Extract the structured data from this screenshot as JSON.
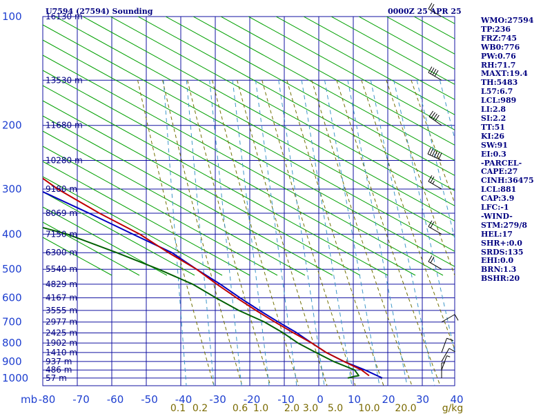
{
  "header": {
    "station": "U7594 (27594) Sounding",
    "time": "0000Z 25 APR 25"
  },
  "indices": [
    "WMO:27594",
    "TP:236",
    "FRZ:745",
    "WB0:776",
    "PW:0.76",
    "RH:71.7",
    "MAXT:19.4",
    "TH:5483",
    "L57:6.7",
    "LCL:989",
    "LI:2.8",
    "SI:2.2",
    "TT:51",
    "KI:26",
    "SW:91",
    "EI:0.3",
    "-PARCEL-",
    "CAPE:27",
    "CINH:36475",
    "LCL:881",
    "CAP:3.9",
    "LFC:-1",
    "-WIND-",
    "STM:279/8",
    "HEL:17",
    "SHR+:0.0",
    "SRDS:135",
    "EHI:0.0",
    "BRN:1.3",
    "BSHR:20"
  ],
  "colors": {
    "grid": "#1010a0",
    "dry_adiabat": "#00a000",
    "moist_adiabat": "#707000",
    "mixing_ratio": "#3c96c8",
    "temperature": "#c00000",
    "dewpoint": "#006000",
    "parcel": "#0000c0",
    "pressure_label": "#1e3fd0",
    "mixing_label": "#7a6a00"
  },
  "chart_data": {
    "type": "skew-t",
    "x_unit_label": "mb",
    "temperature_ticks": [
      "-80",
      "-70",
      "-60",
      "-50",
      "-40",
      "-30",
      "-20",
      "-10",
      "0",
      "10",
      "20",
      "30",
      "40"
    ],
    "pressure_levels": [
      "100",
      "200",
      "300",
      "400",
      "500",
      "600",
      "700",
      "800",
      "900",
      "1000"
    ],
    "mixing_ratio_labels": [
      "0.1",
      "0.2",
      "0.6",
      "1.0",
      "2.0",
      "3.0",
      "5.0",
      "10.0",
      "20.0",
      "g/kg"
    ],
    "height_labels": [
      {
        "p": 100,
        "label": "16130 m"
      },
      {
        "p": 150,
        "label": "13530 m"
      },
      {
        "p": 200,
        "label": "11680 m"
      },
      {
        "p": 250,
        "label": "10280 m"
      },
      {
        "p": 300,
        "label": "9180 m"
      },
      {
        "p": 350,
        "label": "8069 m"
      },
      {
        "p": 400,
        "label": "7150 m"
      },
      {
        "p": 450,
        "label": "6300 m"
      },
      {
        "p": 500,
        "label": "5540 m"
      },
      {
        "p": 550,
        "label": "4829 m"
      },
      {
        "p": 600,
        "label": "4167 m"
      },
      {
        "p": 650,
        "label": "3555 m"
      },
      {
        "p": 700,
        "label": "2977 m"
      },
      {
        "p": 750,
        "label": "2425 m"
      },
      {
        "p": 800,
        "label": "1902 m"
      },
      {
        "p": 850,
        "label": "1410 m"
      },
      {
        "p": 900,
        "label": "937 m"
      },
      {
        "p": 950,
        "label": "486 m"
      },
      {
        "p": 1000,
        "label": "57 m"
      }
    ],
    "temperature_profile": [
      [
        100,
        -61
      ],
      [
        150,
        -54
      ],
      [
        170,
        -54
      ],
      [
        200,
        -57
      ],
      [
        235,
        -62
      ],
      [
        250,
        -60
      ],
      [
        300,
        -52
      ],
      [
        350,
        -43
      ],
      [
        400,
        -34
      ],
      [
        450,
        -28
      ],
      [
        500,
        -22
      ],
      [
        550,
        -18
      ],
      [
        600,
        -14
      ],
      [
        650,
        -10
      ],
      [
        700,
        -6
      ],
      [
        750,
        -2
      ],
      [
        800,
        2
      ],
      [
        850,
        5
      ],
      [
        900,
        9
      ],
      [
        950,
        13
      ],
      [
        985,
        14.5
      ]
    ],
    "dewpoint_profile": [
      [
        100,
        -89
      ],
      [
        150,
        -88
      ],
      [
        200,
        -89
      ],
      [
        235,
        -90
      ],
      [
        250,
        -89
      ],
      [
        300,
        -83
      ],
      [
        350,
        -75
      ],
      [
        400,
        -55
      ],
      [
        450,
        -43
      ],
      [
        500,
        -33
      ],
      [
        550,
        -25
      ],
      [
        600,
        -20
      ],
      [
        650,
        -15
      ],
      [
        700,
        -9
      ],
      [
        750,
        -5
      ],
      [
        800,
        -2
      ],
      [
        850,
        2
      ],
      [
        900,
        6
      ],
      [
        950,
        11
      ],
      [
        985,
        11.5
      ],
      [
        990,
        10
      ],
      [
        1000,
        8
      ]
    ],
    "parcel_profile": [
      [
        210,
        -78
      ],
      [
        250,
        -70
      ],
      [
        300,
        -58
      ],
      [
        350,
        -46
      ],
      [
        400,
        -36
      ],
      [
        450,
        -27
      ],
      [
        500,
        -22
      ],
      [
        550,
        -17
      ],
      [
        600,
        -13
      ],
      [
        650,
        -9
      ],
      [
        700,
        -5
      ],
      [
        750,
        -1
      ],
      [
        800,
        2
      ],
      [
        850,
        5
      ],
      [
        900,
        9
      ],
      [
        950,
        14
      ],
      [
        1000,
        18
      ]
    ],
    "wind_barbs": [
      {
        "p": 100,
        "dir": 120,
        "spd": 20
      },
      {
        "p": 150,
        "dir": 120,
        "spd": 40
      },
      {
        "p": 200,
        "dir": 125,
        "spd": 40
      },
      {
        "p": 250,
        "dir": 115,
        "spd": 60
      },
      {
        "p": 300,
        "dir": 120,
        "spd": 25
      },
      {
        "p": 400,
        "dir": 120,
        "spd": 20
      },
      {
        "p": 500,
        "dir": 120,
        "spd": 20
      },
      {
        "p": 700,
        "dir": 240,
        "spd": 10
      },
      {
        "p": 850,
        "dir": 200,
        "spd": 10
      },
      {
        "p": 900,
        "dir": 210,
        "spd": 10
      },
      {
        "p": 950,
        "dir": 200,
        "spd": 5
      },
      {
        "p": 1000,
        "dir": 180,
        "spd": 5
      }
    ]
  }
}
